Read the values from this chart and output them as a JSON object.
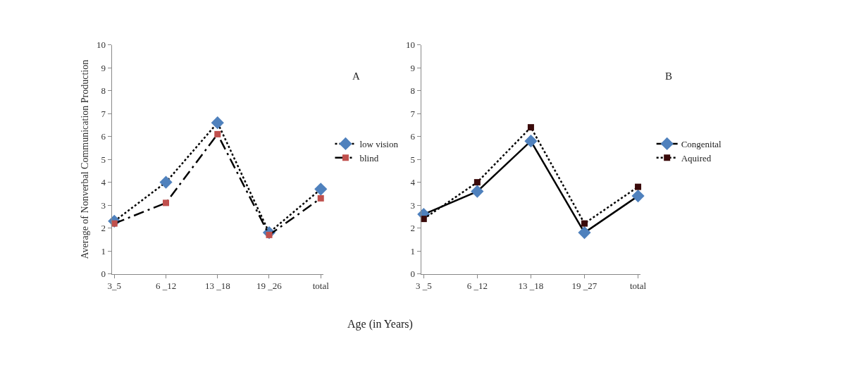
{
  "chart_data": [
    {
      "type": "line",
      "ylabel": "Average of Nonverbal Communication Production",
      "xlabel": "Age (in Years)",
      "annotations": [
        "A"
      ],
      "categories": [
        "3_5",
        "6 _12",
        "13 _18",
        "19 _26",
        "total"
      ],
      "ylim": [
        0,
        10
      ],
      "yticks": [
        0,
        1,
        2,
        3,
        4,
        5,
        6,
        7,
        8,
        9,
        10
      ],
      "grid": false,
      "legend": "right",
      "series": [
        {
          "name": "low vision",
          "color": "#4f81bd",
          "marker": "diamond",
          "line_style": "dotted",
          "values": [
            2.3,
            4.0,
            6.6,
            1.8,
            3.7
          ]
        },
        {
          "name": "blind",
          "color": "#c0504d",
          "marker": "square",
          "line_style": "dashed",
          "values": [
            2.2,
            3.1,
            6.1,
            1.7,
            3.3
          ]
        }
      ]
    },
    {
      "type": "line",
      "annotations": [
        "B"
      ],
      "categories": [
        "3 _5",
        "6 _12",
        "13 _18",
        "19 _27",
        "total"
      ],
      "ylim": [
        0,
        10
      ],
      "yticks": [
        0,
        1,
        2,
        3,
        4,
        5,
        6,
        7,
        8,
        9,
        10
      ],
      "grid": false,
      "legend": "right",
      "series": [
        {
          "name": "Congenital",
          "color": "#4f81bd",
          "marker": "diamond",
          "line_style": "solid",
          "values": [
            2.6,
            3.6,
            5.8,
            1.8,
            3.4
          ]
        },
        {
          "name": "Aquired",
          "color": "#3a0a0a",
          "marker": "square",
          "line_style": "dotted",
          "values": [
            2.4,
            4.0,
            6.4,
            2.2,
            3.8
          ]
        }
      ]
    }
  ]
}
